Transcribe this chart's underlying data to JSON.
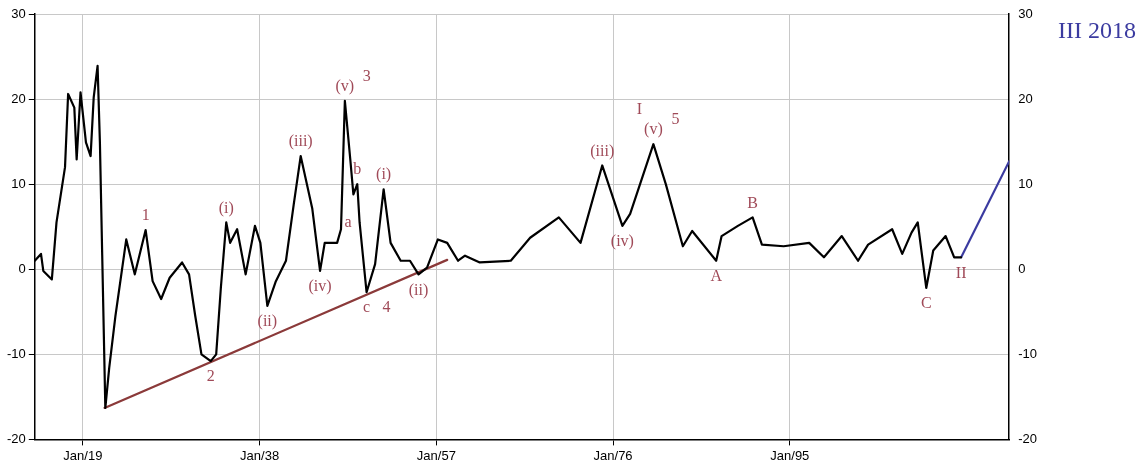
{
  "chart_data": {
    "type": "line",
    "xlim": [
      "1913-11",
      "2018-08"
    ],
    "xticks": [
      {
        "value": "1919-01",
        "label": "Jan/19"
      },
      {
        "value": "1938-01",
        "label": "Jan/38"
      },
      {
        "value": "1957-01",
        "label": "Jan/57"
      },
      {
        "value": "1976-01",
        "label": "Jan/76"
      },
      {
        "value": "1995-01",
        "label": "Jan/95"
      }
    ],
    "ylim": [
      -20,
      30
    ],
    "yticks": [
      -20,
      -10,
      0,
      10,
      20,
      30
    ],
    "y2lim": [
      -20,
      30
    ],
    "y2ticks": [
      -20,
      -10,
      0,
      10,
      20,
      30
    ],
    "grid": true,
    "marker": "none",
    "line_style": "solid",
    "series": [
      {
        "color": "#000000",
        "x": [
          "1913-11",
          "1914-07",
          "1914-10",
          "1915-09",
          "1916-03",
          "1917-02",
          "1917-06",
          "1918-02",
          "1918-05",
          "1918-10",
          "1919-05",
          "1919-11",
          "1920-03",
          "1920-08",
          "1920-11",
          "1921-06",
          "1921-11",
          "1922-07",
          "1923-09",
          "1924-08",
          "1925-10",
          "1926-07",
          "1927-06",
          "1928-05",
          "1929-09",
          "1930-06",
          "1931-02",
          "1931-10",
          "1932-10",
          "1933-05",
          "1933-11",
          "1934-06",
          "1934-11",
          "1935-08",
          "1936-07",
          "1937-07",
          "1938-02",
          "1938-11",
          "1939-10",
          "1940-11",
          "1941-09",
          "1942-06",
          "1943-09",
          "1944-07",
          "1945-01",
          "1946-05",
          "1946-10",
          "1947-03",
          "1947-10",
          "1948-02",
          "1948-07",
          "1948-10",
          "1949-07",
          "1950-06",
          "1951-05",
          "1952-02",
          "1953-03",
          "1954-03",
          "1955-02",
          "1956-01",
          "1957-03",
          "1958-03",
          "1959-05",
          "1960-02",
          "1961-09",
          "1965-01",
          "1967-02",
          "1970-03",
          "1972-07",
          "1974-11",
          "1977-01",
          "1977-11",
          "1980-05",
          "1981-09",
          "1983-07",
          "1984-07",
          "1987-02",
          "1987-09",
          "1989-06",
          "1991-01",
          "1992-01",
          "1994-05",
          "1997-02",
          "1998-09",
          "2000-08",
          "2002-05",
          "2003-06",
          "2006-01",
          "2007-02",
          "2008-02",
          "2008-10",
          "2009-09",
          "2010-06",
          "2011-10",
          "2012-09",
          "2013-06"
        ],
        "values": [
          1.0,
          1.8,
          -0.2,
          -1.2,
          5.5,
          12,
          20.6,
          19,
          12.9,
          20.8,
          14.9,
          13.3,
          20.2,
          23.9,
          14.9,
          -16.3,
          -11.6,
          -5.5,
          3.5,
          -0.6,
          4.6,
          -1.4,
          -3.5,
          -1.0,
          0.8,
          -0.6,
          -5.5,
          -10,
          -10.8,
          -10,
          -2.2,
          5.5,
          3.1,
          4.7,
          -0.6,
          5.1,
          3.1,
          -4.3,
          -1.4,
          1.0,
          7.6,
          13.3,
          7.1,
          -0.2,
          3.1,
          3.1,
          4.7,
          19.8,
          12.9,
          8.8,
          10,
          5.5,
          -2.7,
          0.6,
          9.4,
          3.1,
          1.0,
          1.0,
          -0.6,
          0.2,
          3.5,
          3.1,
          1.0,
          1.6,
          0.8,
          1.0,
          3.7,
          6.1,
          3.1,
          12.2,
          5.1,
          6.5,
          14.7,
          10,
          2.7,
          4.5,
          1.0,
          3.9,
          5.1,
          6.1,
          2.9,
          2.7,
          3.1,
          1.4,
          3.9,
          1.0,
          2.9,
          4.7,
          1.8,
          4.3,
          5.5,
          -2.2,
          2.2,
          3.9,
          1.4,
          1.4
        ]
      },
      {
        "color": "#8b3a3a",
        "x": [
          "1921-05",
          "1958-03"
        ],
        "values": [
          -16.3,
          1.1
        ]
      },
      {
        "color": "#3b3ba0",
        "x": [
          "2013-06",
          "2018-08"
        ],
        "values": [
          1.4,
          12.7
        ]
      }
    ],
    "annotations": [
      {
        "text": "1",
        "x": "1925-10",
        "y": 4.6
      },
      {
        "text": "2",
        "x": "1932-10",
        "y": -10.8
      },
      {
        "text": "(v)",
        "x": "1947-03",
        "y": 19.8
      },
      {
        "text": "3",
        "x": "1947-03",
        "y": 19.8
      },
      {
        "text": "c",
        "x": "1949-07",
        "y": -2.7
      },
      {
        "text": "4",
        "x": "1949-07",
        "y": -2.7
      },
      {
        "text": "(i)",
        "x": "1934-06",
        "y": 5.5
      },
      {
        "text": "(ii)",
        "x": "1938-11",
        "y": -4.3
      },
      {
        "text": "(iii)",
        "x": "1942-06",
        "y": 13.3
      },
      {
        "text": "(iv)",
        "x": "1944-07",
        "y": -0.2
      },
      {
        "text": "a",
        "x": "1948-10",
        "y": 5.5
      },
      {
        "text": "b",
        "x": "1948-07",
        "y": 10
      },
      {
        "text": "(i)",
        "x": "1951-05",
        "y": 9.4
      },
      {
        "text": "(ii)",
        "x": "1955-02",
        "y": -0.6
      },
      {
        "text": "(iii)",
        "x": "1974-11",
        "y": 12.2
      },
      {
        "text": "(iv)",
        "x": "1977-01",
        "y": 5.1
      },
      {
        "text": "(v)",
        "x": "1980-05",
        "y": 14.7
      },
      {
        "text": "5",
        "x": "1980-05",
        "y": 14.7
      },
      {
        "text": "I",
        "x": "1980-05",
        "y": 14.7
      },
      {
        "text": "A",
        "x": "1987-02",
        "y": 1.0
      },
      {
        "text": "B",
        "x": "1991-01",
        "y": 6.1
      },
      {
        "text": "C",
        "x": "2009-09",
        "y": -2.2
      },
      {
        "text": "II",
        "x": "2013-06",
        "y": 1.4
      },
      "III 2018"
    ]
  }
}
